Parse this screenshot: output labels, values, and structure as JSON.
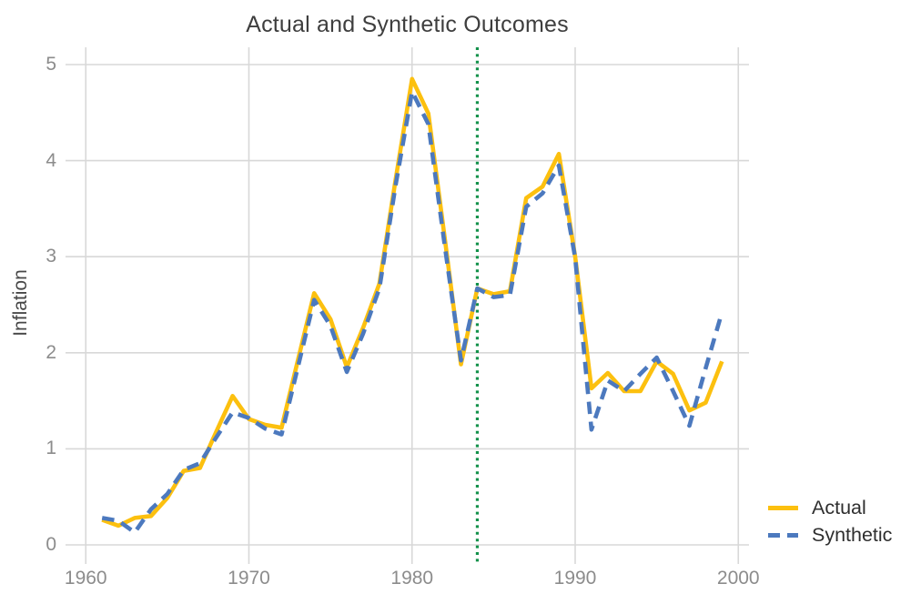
{
  "chart_data": {
    "type": "line",
    "title": "Actual and Synthetic Outcomes",
    "xlabel": "",
    "ylabel": "Inflation",
    "x": [
      1961,
      1962,
      1963,
      1964,
      1965,
      1966,
      1967,
      1968,
      1969,
      1970,
      1971,
      1972,
      1973,
      1974,
      1975,
      1976,
      1977,
      1978,
      1979,
      1980,
      1981,
      1982,
      1983,
      1984,
      1985,
      1986,
      1987,
      1988,
      1989,
      1990,
      1991,
      1992,
      1993,
      1994,
      1995,
      1996,
      1997,
      1998,
      1999
    ],
    "series": [
      {
        "name": "Actual",
        "style": "solid",
        "color": "#FCC00F",
        "values": [
          0.26,
          0.2,
          0.28,
          0.3,
          0.49,
          0.77,
          0.8,
          1.18,
          1.55,
          1.31,
          1.25,
          1.22,
          1.92,
          2.62,
          2.35,
          1.85,
          2.26,
          2.72,
          3.81,
          4.85,
          4.49,
          3.2,
          1.88,
          2.67,
          2.61,
          2.64,
          3.61,
          3.73,
          4.07,
          3.0,
          1.63,
          1.79,
          1.6,
          1.6,
          1.91,
          1.78,
          1.4,
          1.48,
          1.91
        ]
      },
      {
        "name": "Synthetic",
        "style": "dashed",
        "color": "#4C79BE",
        "values": [
          0.28,
          0.25,
          0.13,
          0.37,
          0.53,
          0.78,
          0.85,
          1.12,
          1.38,
          1.32,
          1.21,
          1.15,
          1.85,
          2.55,
          2.28,
          1.8,
          2.2,
          2.67,
          3.75,
          4.72,
          4.38,
          3.12,
          1.92,
          2.67,
          2.58,
          2.6,
          3.52,
          3.66,
          3.95,
          2.99,
          1.2,
          1.71,
          1.6,
          1.78,
          1.95,
          1.6,
          1.24,
          1.84,
          2.42
        ]
      }
    ],
    "treatment_line": {
      "x": 1984,
      "color": "#12914A",
      "style": "dotted"
    },
    "xticks": [
      "1960",
      "1970",
      "1980",
      "1990",
      "2000"
    ],
    "xtick_values": [
      1960,
      1970,
      1980,
      1990,
      2000
    ],
    "yticks": [
      "0",
      "1",
      "2",
      "3",
      "4",
      "5"
    ],
    "ytick_values": [
      0,
      1,
      2,
      3,
      4,
      5
    ],
    "xlim": [
      1958.8,
      2000.7
    ],
    "ylim": [
      -0.2,
      5.18
    ],
    "grid": true,
    "legend_position": "right-bottom",
    "colors": {
      "grid": "#D8D8D8",
      "tick_label": "#8C8C8C",
      "title_text": "#3E3E3E",
      "axis_label_text": "#474747",
      "legend_text": "#2E2E2E",
      "background": "#FFFFFF"
    }
  }
}
